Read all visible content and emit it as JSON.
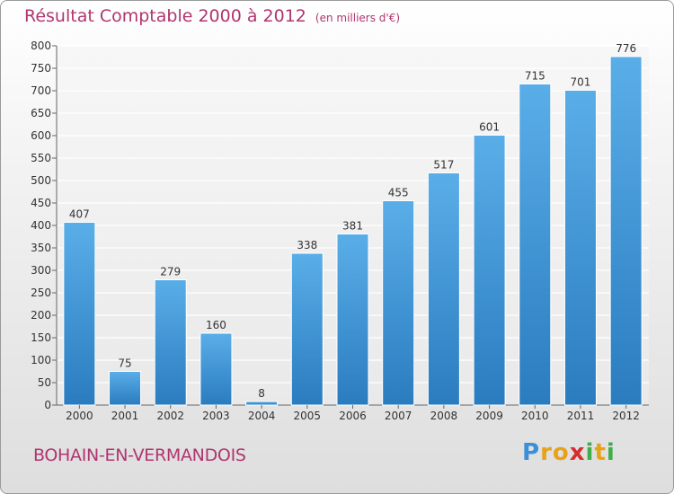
{
  "chart_data": {
    "type": "bar",
    "title": "Résultat Comptable 2000 à 2012",
    "subtitle": "(en milliers d'€)",
    "categories": [
      "2000",
      "2001",
      "2002",
      "2003",
      "2004",
      "2005",
      "2006",
      "2007",
      "2008",
      "2009",
      "2010",
      "2011",
      "2012"
    ],
    "values": [
      407,
      75,
      279,
      160,
      8,
      338,
      381,
      455,
      517,
      601,
      715,
      701,
      776
    ],
    "ylim": [
      0,
      800
    ],
    "yticks": [
      0,
      50,
      100,
      150,
      200,
      250,
      300,
      350,
      400,
      450,
      500,
      550,
      600,
      650,
      700,
      750,
      800
    ],
    "grid": true,
    "bar_color": "#4ea3dd"
  },
  "footer": {
    "commune": "BOHAIN-EN-VERMANDOIS",
    "brand_letters": [
      "P",
      "r",
      "o",
      "x",
      "i",
      "t",
      "i"
    ],
    "brand_colors": [
      "#3a8fd6",
      "#e8a21a",
      "#e8a21a",
      "#d62e2e",
      "#3fae49",
      "#e8a21a",
      "#3fae49"
    ]
  }
}
